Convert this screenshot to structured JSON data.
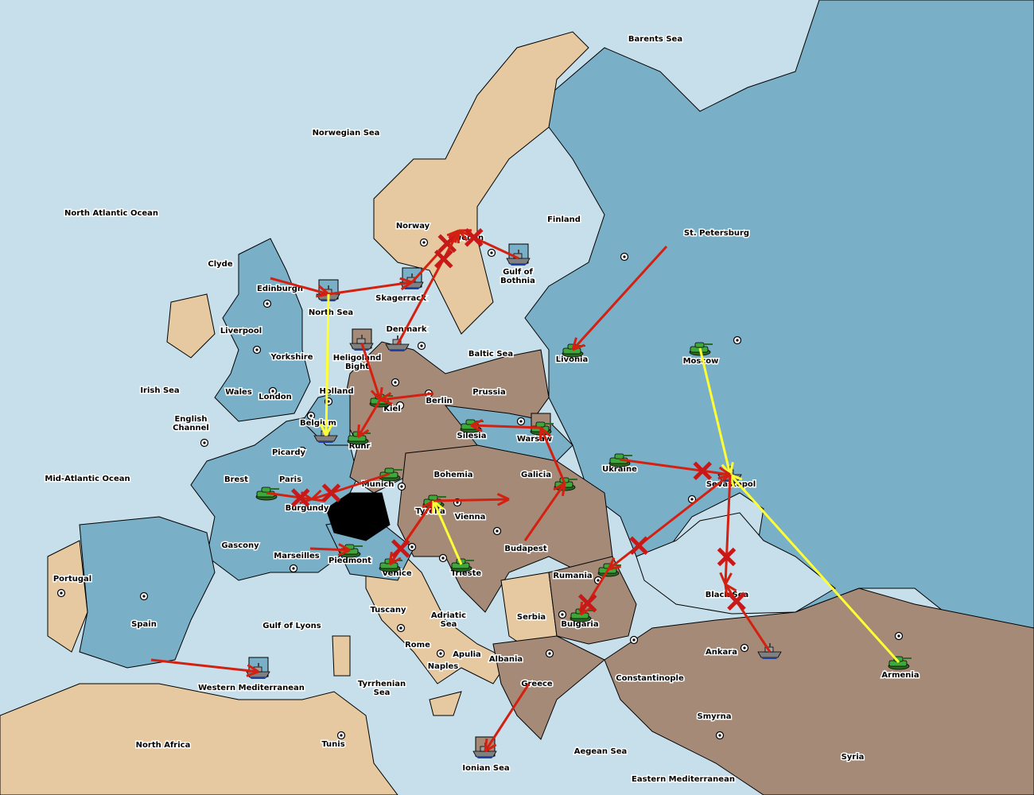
{
  "colors": {
    "sea": "#c6dfea",
    "power_blue": "#7aafc8",
    "power_brown": "#a58a78",
    "neutral": "#e6c9a0",
    "army": "#3fa83a",
    "support": "#ffff33",
    "move": "#d42010",
    "impassable": "#000000"
  },
  "provinces": [
    "Barents Sea",
    "Norwegian Sea",
    "North Atlantic Ocean",
    "Finland",
    "St. Petersburg",
    "Norway",
    "Sweden",
    "Gulf of Bothnia",
    "Clyde",
    "Edinburgh",
    "Skagerrack",
    "North Sea",
    "Denmark",
    "Liverpool",
    "Baltic Sea",
    "Livonia",
    "Moscow",
    "Heligoland Bight",
    "Yorkshire",
    "Irish Sea",
    "Wales",
    "Holland",
    "Prussia",
    "London",
    "Berlin",
    "Kiel",
    "English Channel",
    "Belgium",
    "Silesia",
    "Warsaw",
    "Ruhr",
    "Picardy",
    "Ukraine",
    "Bohemia",
    "Galicia",
    "Mid-Atlantic Ocean",
    "Brest",
    "Paris",
    "Munich",
    "Sevastopol",
    "Burgundy",
    "Tyrolia",
    "Vienna",
    "Gascony",
    "Budapest",
    "Marseilles",
    "Piedmont",
    "Venice",
    "Trieste",
    "Rumania",
    "Portugal",
    "Black Sea",
    "Tuscany",
    "Adriatic Sea",
    "Serbia",
    "Bulgaria",
    "Spain",
    "Gulf of Lyons",
    "Rome",
    "Apulia",
    "Ankara",
    "Albania",
    "Naples",
    "Armenia",
    "Constantinople",
    "Greece",
    "Tyrrhenian Sea",
    "Western Mediterranean",
    "Smyrna",
    "North Africa",
    "Tunis",
    "Aegean Sea",
    "Syria",
    "Ionian Sea",
    "Eastern Mediterranean"
  ],
  "units": [
    {
      "type": "fleet",
      "province": "North Sea",
      "flag": "blue"
    },
    {
      "type": "fleet",
      "province": "Skagerrack",
      "flag": "blue"
    },
    {
      "type": "fleet",
      "province": "Gulf of Bothnia",
      "flag": "blue"
    },
    {
      "type": "fleet",
      "province": "Heligoland Bight",
      "flag": "brown"
    },
    {
      "type": "fleet",
      "province": "Denmark"
    },
    {
      "type": "fleet",
      "province": "Belgium"
    },
    {
      "type": "fleet",
      "province": "Sevastopol"
    },
    {
      "type": "fleet",
      "province": "Ankara"
    },
    {
      "type": "fleet",
      "province": "Western Mediterranean",
      "flag": "blue"
    },
    {
      "type": "fleet",
      "province": "Ionian Sea",
      "flag": "brown"
    },
    {
      "type": "army",
      "province": "Livonia"
    },
    {
      "type": "army",
      "province": "Moscow"
    },
    {
      "type": "army",
      "province": "Kiel"
    },
    {
      "type": "army",
      "province": "Ruhr"
    },
    {
      "type": "army",
      "province": "Silesia"
    },
    {
      "type": "army",
      "province": "Warsaw",
      "flag": "brown"
    },
    {
      "type": "army",
      "province": "Ukraine"
    },
    {
      "type": "army",
      "province": "Galicia"
    },
    {
      "type": "army",
      "province": "Munich"
    },
    {
      "type": "army",
      "province": "Tyrolia"
    },
    {
      "type": "army",
      "province": "Brest"
    },
    {
      "type": "army",
      "province": "Piedmont"
    },
    {
      "type": "army",
      "province": "Venice"
    },
    {
      "type": "army",
      "province": "Trieste"
    },
    {
      "type": "army",
      "province": "Rumania"
    },
    {
      "type": "army",
      "province": "Bulgaria"
    },
    {
      "type": "army",
      "province": "Armenia"
    }
  ],
  "orders": [
    {
      "from": "Edinburgh",
      "to": "North Sea",
      "kind": "move"
    },
    {
      "from": "North Sea",
      "to": "Skagerrack",
      "kind": "move"
    },
    {
      "from": "Skagerrack",
      "to": "Sweden",
      "kind": "move",
      "failed": true
    },
    {
      "from": "Denmark",
      "to": "Sweden",
      "kind": "move",
      "failed": true
    },
    {
      "from": "Gulf of Bothnia",
      "to": "Sweden",
      "kind": "move",
      "failed": true
    },
    {
      "from": "North Sea",
      "to": "Belgium",
      "kind": "support"
    },
    {
      "from": "Heligoland Bight",
      "to": "Kiel",
      "kind": "move"
    },
    {
      "from": "Berlin",
      "to": "Kiel",
      "kind": "move"
    },
    {
      "from": "Kiel",
      "to": "Ruhr",
      "kind": "move"
    },
    {
      "from": "Warsaw",
      "to": "Silesia",
      "kind": "move"
    },
    {
      "from": "Galicia",
      "to": "Warsaw",
      "kind": "move"
    },
    {
      "from": "Budapest",
      "to": "Galicia",
      "kind": "move"
    },
    {
      "from": "St. Petersburg",
      "to": "Livonia",
      "kind": "move"
    },
    {
      "from": "Moscow",
      "to": "Sevastopol",
      "kind": "support"
    },
    {
      "from": "Armenia",
      "to": "Sevastopol",
      "kind": "support"
    },
    {
      "from": "Ukraine",
      "to": "Sevastopol",
      "kind": "move",
      "failed": true
    },
    {
      "from": "Sevastopol",
      "to": "Black Sea",
      "kind": "move",
      "failed": true
    },
    {
      "from": "Sevastopol",
      "to": "Rumania",
      "kind": "move",
      "failed": true
    },
    {
      "from": "Ankara",
      "to": "Black Sea",
      "kind": "move",
      "failed": true
    },
    {
      "from": "Rumania",
      "to": "Bulgaria",
      "kind": "move",
      "failed": true
    },
    {
      "from": "Munich",
      "to": "Burgundy",
      "kind": "move",
      "failed": true
    },
    {
      "from": "Brest",
      "to": "Burgundy",
      "kind": "move",
      "failed": true
    },
    {
      "from": "Marseilles",
      "to": "Piedmont",
      "kind": "move"
    },
    {
      "from": "Venice",
      "to": "Tyrolia",
      "kind": "move"
    },
    {
      "from": "Tyrolia",
      "to": "Venice",
      "kind": "move",
      "failed": true
    },
    {
      "from": "Trieste",
      "to": "Tyrolia",
      "kind": "support"
    },
    {
      "from": "Tyrolia",
      "to": "Vienna",
      "kind": "move"
    },
    {
      "from": "Greece",
      "to": "Ionian Sea",
      "kind": "move"
    },
    {
      "from": "Spain",
      "to": "Western Mediterranean",
      "kind": "move"
    }
  ]
}
